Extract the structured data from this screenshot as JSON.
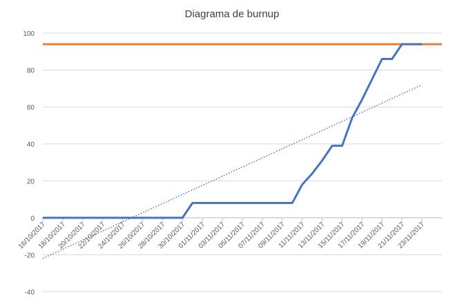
{
  "chart_data": {
    "type": "line",
    "title": "Diagrama de burnup",
    "xlabel": "",
    "ylabel": "",
    "ylim": [
      -40,
      100
    ],
    "yticks": [
      -40,
      -20,
      0,
      20,
      40,
      60,
      80,
      100
    ],
    "x_tick_labels": [
      "16/10/2017",
      "18/10/2017",
      "20/10/2017",
      "22/10/2017",
      "24/10/2017",
      "26/10/2017",
      "28/10/2017",
      "30/10/2017",
      "01/11/2017",
      "03/11/2017",
      "05/11/2017",
      "07/11/2017",
      "09/11/2017",
      "11/11/2017",
      "13/11/2017",
      "15/11/2017",
      "17/11/2017",
      "19/11/2017",
      "21/11/2017",
      "23/11/2017"
    ],
    "x_range": [
      "16/10/2017",
      "25/11/2017"
    ],
    "grid": "horizontal",
    "legend": "none",
    "series": [
      {
        "role": "scope",
        "color": "#ed7d31",
        "style": "solid",
        "points": [
          [
            "16/10/2017",
            94
          ],
          [
            "25/11/2017",
            94
          ]
        ]
      },
      {
        "role": "completed",
        "color": "#4472c4",
        "style": "solid",
        "points": [
          [
            "16/10/2017",
            0
          ],
          [
            "30/10/2017",
            0
          ],
          [
            "31/10/2017",
            8
          ],
          [
            "10/11/2017",
            8
          ],
          [
            "11/11/2017",
            18
          ],
          [
            "12/11/2017",
            24
          ],
          [
            "13/11/2017",
            31
          ],
          [
            "14/11/2017",
            39
          ],
          [
            "15/11/2017",
            39
          ],
          [
            "16/11/2017",
            54
          ],
          [
            "17/11/2017",
            64
          ],
          [
            "18/11/2017",
            75
          ],
          [
            "19/11/2017",
            86
          ],
          [
            "20/11/2017",
            86
          ],
          [
            "21/11/2017",
            94
          ],
          [
            "23/11/2017",
            94
          ]
        ]
      },
      {
        "role": "trend",
        "color": "#4472c4",
        "style": "dotted",
        "points": [
          [
            "16/10/2017",
            -22
          ],
          [
            "23/11/2017",
            72
          ]
        ]
      }
    ]
  }
}
